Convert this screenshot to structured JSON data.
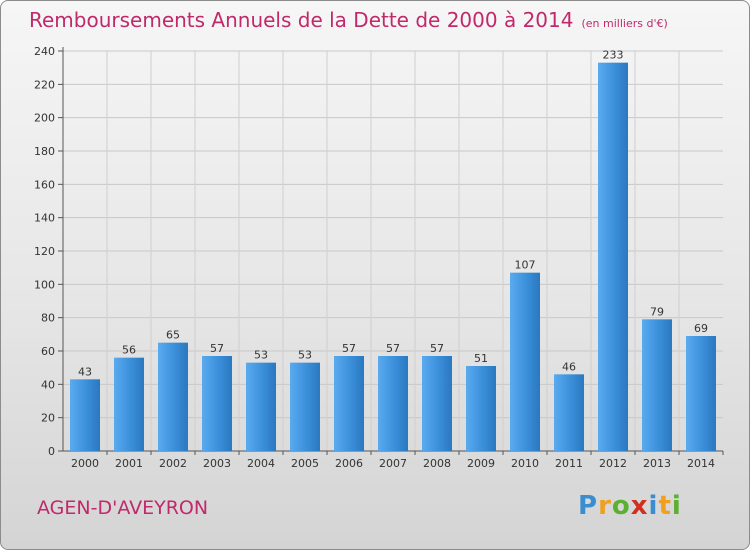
{
  "chart_data": {
    "type": "bar",
    "title": "Remboursements Annuels de la Dette de 2000 à 2014",
    "unit": "(en milliers d'€)",
    "categories": [
      "2000",
      "2001",
      "2002",
      "2003",
      "2004",
      "2005",
      "2006",
      "2007",
      "2008",
      "2009",
      "2010",
      "2011",
      "2012",
      "2013",
      "2014"
    ],
    "values": [
      43,
      56,
      65,
      57,
      53,
      53,
      57,
      57,
      57,
      51,
      107,
      46,
      233,
      79,
      69
    ],
    "ylim": [
      0,
      240
    ],
    "yticks": [
      0,
      20,
      40,
      60,
      80,
      100,
      120,
      140,
      160,
      180,
      200,
      220,
      240
    ],
    "grid": true,
    "bar_color": "#3a8fd6"
  },
  "footer": {
    "commune": "AGEN-D'AVEYRON",
    "logo": {
      "p": "P",
      "r": "r",
      "o": "o",
      "x": "x",
      "i1": "i",
      "t": "t",
      "i2": "i"
    }
  }
}
